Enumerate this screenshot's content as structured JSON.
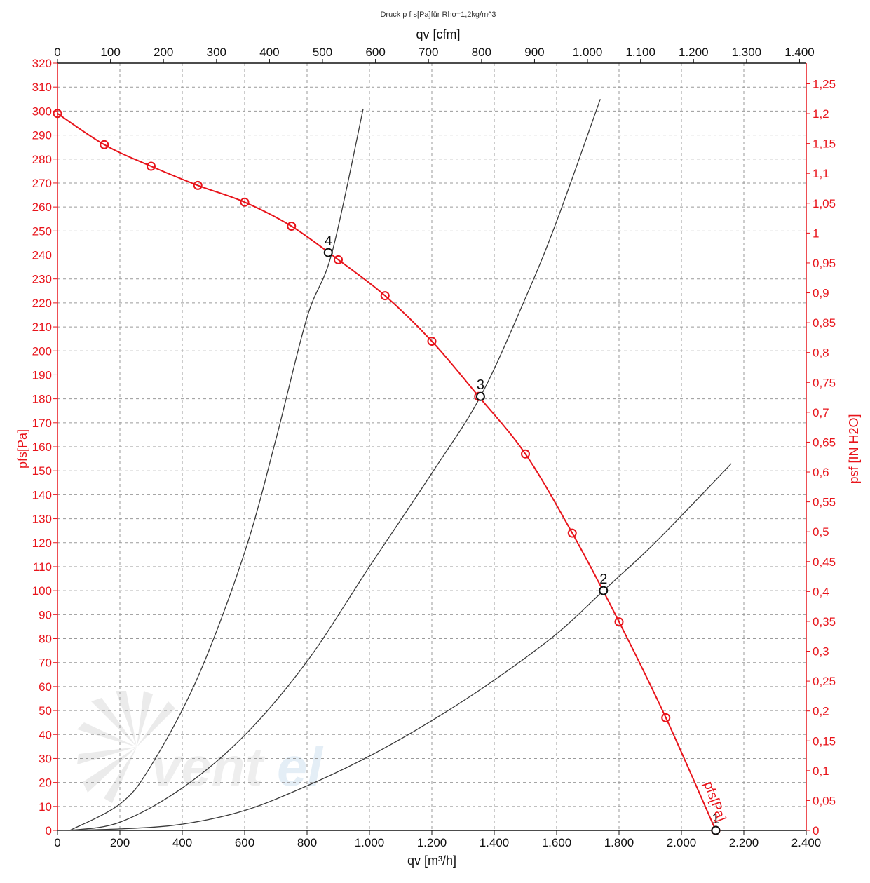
{
  "chart_data": {
    "type": "line",
    "title": "Druck p f s[Pa]für Rho=1,2kg/m^3",
    "xlabel": "qv [m³/h]",
    "x2label": "qv [cfm]",
    "ylabel": "pfs[Pa]",
    "y2label": "psf [IN H2O]",
    "xlim": [
      0,
      2400
    ],
    "ylim": [
      0,
      320
    ],
    "x2lim": [
      0,
      1412.6
    ],
    "y2lim": [
      0,
      1.2846
    ],
    "grid": true,
    "x_ticks": [
      "0",
      "200",
      "400",
      "600",
      "800",
      "1.000",
      "1.200",
      "1.400",
      "1.600",
      "1.800",
      "2.000",
      "2.200",
      "2.400"
    ],
    "x2_ticks": [
      "0",
      "100",
      "200",
      "300",
      "400",
      "500",
      "600",
      "700",
      "800",
      "900",
      "1.000",
      "1.100",
      "1.200",
      "1.300",
      "1.400"
    ],
    "y_ticks": [
      "0",
      "10",
      "20",
      "30",
      "40",
      "50",
      "60",
      "70",
      "80",
      "90",
      "100",
      "110",
      "120",
      "130",
      "140",
      "150",
      "160",
      "170",
      "180",
      "190",
      "200",
      "210",
      "220",
      "230",
      "240",
      "250",
      "260",
      "270",
      "280",
      "290",
      "300",
      "310",
      "320"
    ],
    "y2_ticks": [
      "0",
      "0,05",
      "0,1",
      "0,15",
      "0,2",
      "0,25",
      "0,3",
      "0,35",
      "0,4",
      "0,45",
      "0,5",
      "0,55",
      "0,6",
      "0,65",
      "0,7",
      "0,75",
      "0,8",
      "0,85",
      "0,9",
      "0,95",
      "1",
      "1,05",
      "1,1",
      "1,15",
      "1,2",
      "1,25"
    ],
    "series": [
      {
        "name": "pfs[Pa]",
        "color": "#e8141b",
        "markers": "circle",
        "x": [
          0,
          150,
          300,
          450,
          600,
          750,
          900,
          1050,
          1200,
          1350,
          1500,
          1650,
          1800,
          1950,
          2110
        ],
        "y": [
          299,
          286,
          277,
          269,
          262,
          252,
          238,
          223,
          204,
          181,
          157,
          124,
          87,
          47,
          0
        ]
      },
      {
        "name": "",
        "color": "#3a3a3a",
        "x": [
          0,
          200,
          400,
          600,
          800,
          1000,
          1200,
          1400,
          1600,
          1750,
          1900,
          2050,
          2160
        ],
        "y": [
          0,
          0.6,
          2.6,
          8.3,
          18.6,
          31,
          45.8,
          62.7,
          82,
          100,
          118,
          138,
          153
        ]
      },
      {
        "name": "",
        "color": "#3a3a3a",
        "x": [
          40,
          200,
          400,
          600,
          800,
          1000,
          1200,
          1356,
          1500,
          1600,
          1740
        ],
        "y": [
          0,
          3.4,
          17.7,
          39.7,
          70.5,
          110,
          149,
          181,
          222,
          254,
          305
        ]
      },
      {
        "name": "",
        "color": "#3a3a3a",
        "x": [
          40,
          200,
          300,
          450,
          600,
          700,
          800,
          880,
          980
        ],
        "y": [
          0,
          11,
          27,
          64,
          116,
          163,
          214,
          241,
          301
        ]
      }
    ],
    "operating_points": [
      {
        "label": "1",
        "x": 2110,
        "y": 0
      },
      {
        "label": "2",
        "x": 1750,
        "y": 100
      },
      {
        "label": "3",
        "x": 1356,
        "y": 181
      },
      {
        "label": "4",
        "x": 868,
        "y": 241
      }
    ],
    "curve_label": "pfs[Pa]"
  },
  "watermark": {
    "text": "ventel"
  }
}
